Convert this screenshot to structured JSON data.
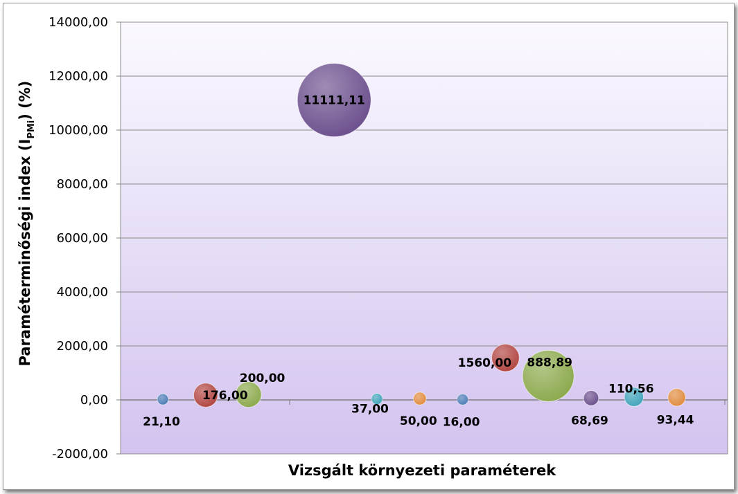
{
  "chart_data": {
    "type": "bubble",
    "xlabel": "Vizsgált környezeti paraméterek",
    "ylabel": {
      "main": "Paraméterminőségi index (I",
      "sub": "PMi",
      "end": ") (%)"
    },
    "ylim": [
      -2000,
      14000
    ],
    "yticks": [
      "-2000,00",
      "0,00",
      "2000,00",
      "4000,00",
      "6000,00",
      "8000,00",
      "10000,00",
      "12000,00",
      "14000,00"
    ],
    "grid": true,
    "points": [
      {
        "x": 1,
        "y": 21.1,
        "label": "21,10",
        "color": "#4a7ab5"
      },
      {
        "x": 2,
        "y": 176.0,
        "label": "176,00",
        "color": "#b0433f"
      },
      {
        "x": 3,
        "y": 200.0,
        "label": "200,00",
        "color": "#8aa84a"
      },
      {
        "x": 5,
        "y": 11111.11,
        "label": "11111,11",
        "color": "#6a4d8c"
      },
      {
        "x": 6,
        "y": 37.0,
        "label": "37,00",
        "color": "#3ea2ba"
      },
      {
        "x": 7,
        "y": 50.0,
        "label": "50,00",
        "color": "#e08a3c"
      },
      {
        "x": 8,
        "y": 16.0,
        "label": "16,00",
        "color": "#4a7ab5"
      },
      {
        "x": 9,
        "y": 1560.0,
        "label": "1560,00",
        "color": "#b0433f"
      },
      {
        "x": 10,
        "y": 888.89,
        "label": "888,89",
        "color": "#8aa84a"
      },
      {
        "x": 11,
        "y": 68.69,
        "label": "68,69",
        "color": "#6a4d8c"
      },
      {
        "x": 12,
        "y": 110.56,
        "label": "110,56",
        "color": "#3ea2ba"
      },
      {
        "x": 13,
        "y": 93.44,
        "label": "93,44",
        "color": "#e08a3c"
      }
    ]
  }
}
